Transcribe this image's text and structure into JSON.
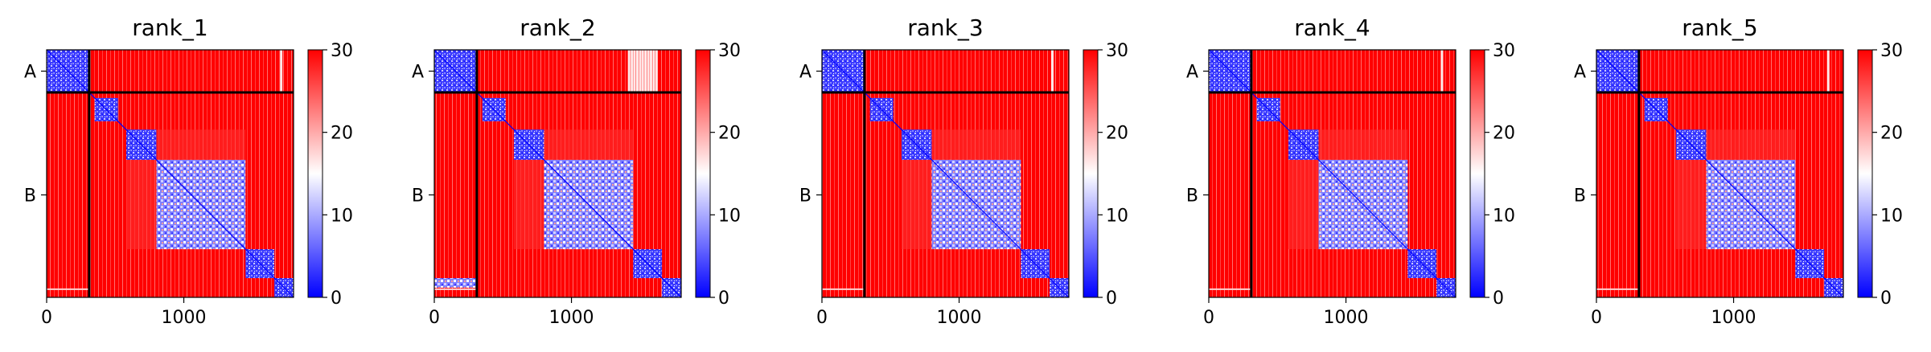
{
  "figure": {
    "panel_count": 5
  },
  "chart_data": [
    {
      "type": "heatmap",
      "title": "rank_1",
      "x_ticks": [
        0,
        1000
      ],
      "y_ticks": [
        "A",
        "B"
      ],
      "chain_lengths": {
        "A": 310,
        "B": 1490
      },
      "chain_boundary": 310,
      "xlim": [
        0,
        1800
      ],
      "ylim": [
        1800,
        0
      ],
      "colorbar": {
        "min": 0,
        "max": 30,
        "ticks": [
          0,
          10,
          20,
          30
        ],
        "colormap": "bwr"
      },
      "blocks_low_value": [
        [
          0,
          310
        ],
        [
          350,
          520
        ],
        [
          580,
          800
        ],
        [
          800,
          1450
        ],
        [
          1450,
          1660
        ],
        [
          1660,
          1800
        ]
      ],
      "bright_stripes_x": [
        1710
      ]
    },
    {
      "type": "heatmap",
      "title": "rank_2",
      "x_ticks": [
        0,
        1000
      ],
      "y_ticks": [
        "A",
        "B"
      ],
      "chain_lengths": {
        "A": 310,
        "B": 1490
      },
      "chain_boundary": 310,
      "xlim": [
        0,
        1800
      ],
      "ylim": [
        1800,
        0
      ],
      "colorbar": {
        "min": 0,
        "max": 30,
        "ticks": [
          0,
          10,
          20,
          30
        ],
        "colormap": "bwr"
      },
      "blocks_low_value": [
        [
          0,
          310
        ],
        [
          350,
          520
        ],
        [
          580,
          800
        ],
        [
          800,
          1450
        ],
        [
          1450,
          1660
        ],
        [
          1660,
          1800
        ]
      ],
      "bright_stripes_x": [
        1420,
        1440,
        1460,
        1480,
        1500,
        1520,
        1540,
        1560,
        1580,
        1600,
        1620
      ]
    },
    {
      "type": "heatmap",
      "title": "rank_3",
      "x_ticks": [
        0,
        1000
      ],
      "y_ticks": [
        "A",
        "B"
      ],
      "chain_lengths": {
        "A": 310,
        "B": 1490
      },
      "chain_boundary": 310,
      "xlim": [
        0,
        1800
      ],
      "ylim": [
        1800,
        0
      ],
      "colorbar": {
        "min": 0,
        "max": 30,
        "ticks": [
          0,
          10,
          20,
          30
        ],
        "colormap": "bwr"
      },
      "blocks_low_value": [
        [
          0,
          310
        ],
        [
          350,
          520
        ],
        [
          580,
          800
        ],
        [
          800,
          1450
        ],
        [
          1450,
          1660
        ],
        [
          1660,
          1800
        ]
      ],
      "bright_stripes_x": [
        1680
      ]
    },
    {
      "type": "heatmap",
      "title": "rank_4",
      "x_ticks": [
        0,
        1000
      ],
      "y_ticks": [
        "A",
        "B"
      ],
      "chain_lengths": {
        "A": 310,
        "B": 1490
      },
      "chain_boundary": 310,
      "xlim": [
        0,
        1800
      ],
      "ylim": [
        1800,
        0
      ],
      "colorbar": {
        "min": 0,
        "max": 30,
        "ticks": [
          0,
          10,
          20,
          30
        ],
        "colormap": "bwr"
      },
      "blocks_low_value": [
        [
          0,
          310
        ],
        [
          350,
          520
        ],
        [
          580,
          800
        ],
        [
          800,
          1450
        ],
        [
          1450,
          1660
        ],
        [
          1660,
          1800
        ]
      ],
      "bright_stripes_x": [
        1700
      ]
    },
    {
      "type": "heatmap",
      "title": "rank_5",
      "x_ticks": [
        0,
        1000
      ],
      "y_ticks": [
        "A",
        "B"
      ],
      "chain_lengths": {
        "A": 310,
        "B": 1490
      },
      "chain_boundary": 310,
      "xlim": [
        0,
        1800
      ],
      "ylim": [
        1800,
        0
      ],
      "colorbar": {
        "min": 0,
        "max": 30,
        "ticks": [
          0,
          10,
          20,
          30
        ],
        "colormap": "bwr"
      },
      "blocks_low_value": [
        [
          0,
          310
        ],
        [
          350,
          520
        ],
        [
          580,
          800
        ],
        [
          800,
          1450
        ],
        [
          1450,
          1660
        ],
        [
          1660,
          1800
        ]
      ],
      "bright_stripes_x": [
        1690
      ]
    }
  ]
}
